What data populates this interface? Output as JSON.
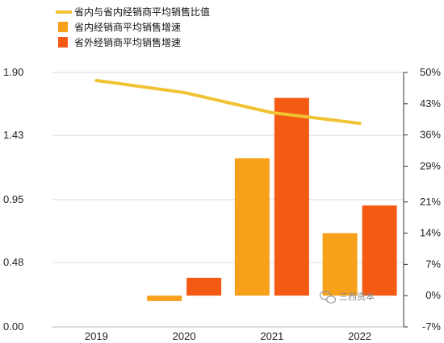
{
  "chart_data": {
    "type": "bar",
    "categories": [
      "2019",
      "2020",
      "2021",
      "2022"
    ],
    "legend_position": "top-left",
    "grid": "horizontal",
    "left_axis": {
      "ticks": [
        "1.90",
        "1.43",
        "0.95",
        "0.48",
        "0.00"
      ],
      "ylim": [
        0.0,
        1.9
      ]
    },
    "right_axis": {
      "ticks": [
        "50%",
        "43%",
        "36%",
        "29%",
        "21%",
        "14%",
        "7%",
        "0%",
        "-7%"
      ],
      "ylim": [
        -7,
        50
      ],
      "unit": "%"
    },
    "series": [
      {
        "name": "省内与省内经销商平均销售比值",
        "kind": "line",
        "axis": "left",
        "color": "#F1C232",
        "values": [
          1.84,
          1.75,
          1.6,
          1.52
        ]
      },
      {
        "name": "省内经销商平均销售增速",
        "kind": "bar",
        "axis": "right",
        "color": "#F7A01A",
        "values": [
          null,
          -1.2,
          30.8,
          14
        ]
      },
      {
        "name": "省外经销商平均销售增速",
        "kind": "bar",
        "axis": "right",
        "color": "#F45A14",
        "values": [
          null,
          4,
          44.3,
          20.2
        ]
      }
    ]
  },
  "watermark": {
    "text": "三西资本",
    "icon": "wechat-icon"
  }
}
